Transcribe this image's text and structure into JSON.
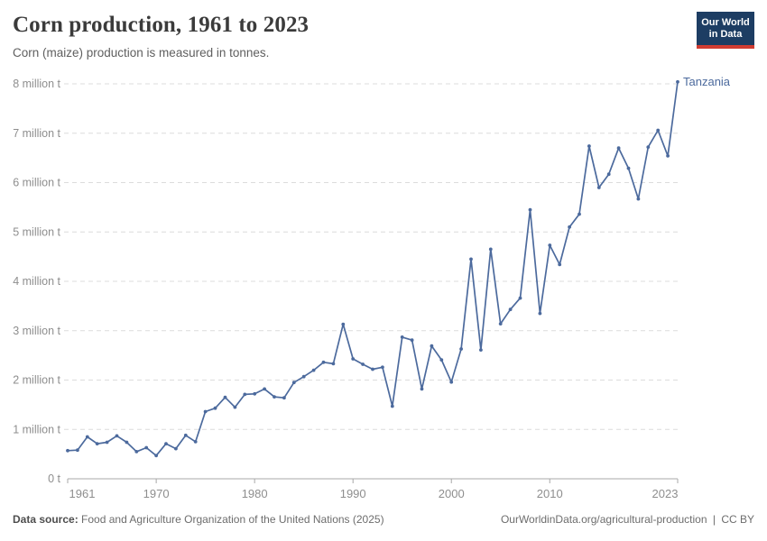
{
  "header": {
    "logo": {
      "line1": "Our World",
      "line2": "in Data",
      "bg_color": "#1d3d63",
      "bar_color": "#d13c32"
    }
  },
  "chart_data": {
    "type": "line",
    "title": "Corn production, 1961 to 2023",
    "subtitle": "Corn (maize) production is measured in tonnes.",
    "xlim": [
      1961,
      2023
    ],
    "ylim": [
      0,
      8
    ],
    "unit": "million t",
    "grid": "horizontal dashed",
    "legend_position": "end-of-line label",
    "x_ticks": [
      1961,
      1970,
      1980,
      1990,
      2000,
      2010,
      2023
    ],
    "y_ticks": [
      {
        "value": 0,
        "label": "0 t"
      },
      {
        "value": 1,
        "label": "1 million t"
      },
      {
        "value": 2,
        "label": "2 million t"
      },
      {
        "value": 3,
        "label": "3 million t"
      },
      {
        "value": 4,
        "label": "4 million t"
      },
      {
        "value": 5,
        "label": "5 million t"
      },
      {
        "value": 6,
        "label": "6 million t"
      },
      {
        "value": 7,
        "label": "7 million t"
      },
      {
        "value": 8,
        "label": "8 million t"
      }
    ],
    "series": [
      {
        "name": "Tanzania",
        "color": "#4c6a9d",
        "x_start": 1961,
        "x_step": 1,
        "values_million_t": [
          0.57,
          0.58,
          0.85,
          0.71,
          0.74,
          0.87,
          0.74,
          0.55,
          0.63,
          0.47,
          0.71,
          0.61,
          0.88,
          0.75,
          1.36,
          1.43,
          1.65,
          1.45,
          1.71,
          1.72,
          1.82,
          1.66,
          1.64,
          1.95,
          2.07,
          2.2,
          2.36,
          2.33,
          3.13,
          2.43,
          2.32,
          2.22,
          2.26,
          1.47,
          2.87,
          2.81,
          1.82,
          2.69,
          2.41,
          1.96,
          2.63,
          4.45,
          2.61,
          4.65,
          3.14,
          3.43,
          3.66,
          5.45,
          3.35,
          4.73,
          4.34,
          5.1,
          5.36,
          6.74,
          5.9,
          6.17,
          6.7,
          6.29,
          5.67,
          6.72,
          7.06,
          6.54,
          8.04
        ]
      }
    ]
  },
  "footer": {
    "datasource_label": "Data source:",
    "datasource_text": "Food and Agriculture Organization of the United Nations (2025)",
    "link": "OurWorldinData.org/agricultural-production",
    "separator": "|",
    "license": "CC BY"
  }
}
